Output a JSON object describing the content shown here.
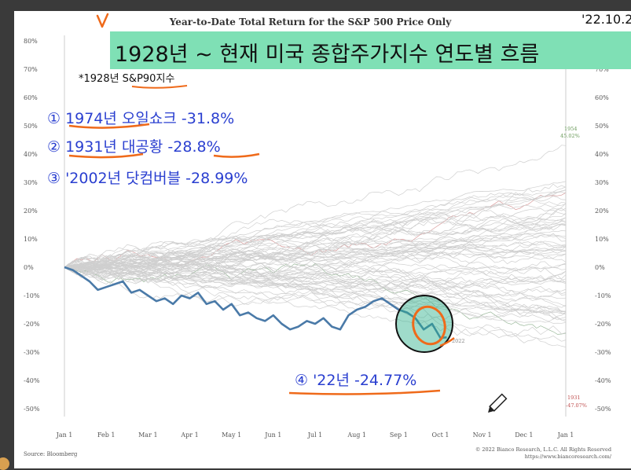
{
  "chart_data": {
    "type": "line",
    "title": "Year-to-Date Total Return for the S&P 500 Price Only",
    "x_tick_labels": [
      "Jan 1",
      "Feb 1",
      "Mar 1",
      "Apr 1",
      "May 1",
      "Jun 1",
      "Jul 1",
      "Aug 1",
      "Sep 1",
      "Oct 1",
      "Nov 1",
      "Dec 1",
      "Jan 1"
    ],
    "y_tick_labels": [
      "80%",
      "70%",
      "60%",
      "50%",
      "40%",
      "30%",
      "20%",
      "10%",
      "0%",
      "-10%",
      "-20%",
      "-30%",
      "-40%",
      "-50%"
    ],
    "right_y_tick_labels": [
      "70%",
      "60%",
      "50%",
      "40%",
      "30%",
      "20%",
      "10%",
      "0%",
      "-10%",
      "-20%",
      "-30%",
      "-40%",
      "-50%"
    ],
    "ylim": [
      -55,
      82
    ],
    "xlim": [
      0,
      12
    ],
    "grid": false,
    "highlight_series": {
      "color": "#4a7aa8",
      "x": [
        0,
        0.2,
        0.4,
        0.6,
        0.8,
        1.0,
        1.2,
        1.4,
        1.6,
        1.8,
        2.0,
        2.2,
        2.4,
        2.6,
        2.8,
        3.0,
        3.2,
        3.4,
        3.6,
        3.8,
        4.0,
        4.2,
        4.4,
        4.6,
        4.8,
        5.0,
        5.2,
        5.4,
        5.6,
        5.8,
        6.0,
        6.2,
        6.4,
        6.6,
        6.8,
        7.0,
        7.2,
        7.4,
        7.6,
        7.8,
        8.0,
        8.2,
        8.4,
        8.6,
        8.8,
        9.0,
        9.15
      ],
      "values": [
        0,
        -1,
        -3,
        -5,
        -8,
        -7,
        -6,
        -5,
        -9,
        -8,
        -10,
        -12,
        -11,
        -13,
        -10,
        -11,
        -9,
        -13,
        -12,
        -15,
        -13,
        -17,
        -16,
        -18,
        -19,
        -17,
        -20,
        -22,
        -21,
        -19,
        -20,
        -18,
        -21,
        -22,
        -17,
        -15,
        -14,
        -12,
        -11,
        -13,
        -15,
        -16,
        -18,
        -22,
        -20,
        -25,
        -24.77
      ]
    },
    "annotations": {
      "year_1954_label": "1954",
      "year_1954_value": "45.02%",
      "year_1931_label": "1931",
      "year_1931_value": "-47.07%",
      "year_2022_label": "2022"
    },
    "source_label": "Source: Bloomberg",
    "copyright": "© 2022 Bianco Research, L.L.C. All Rights Reserved",
    "url": "https://www.biancoresearch.com/"
  },
  "overlay": {
    "banner_date": "'22.10.2",
    "banner_title": "1928년 ~ 현재 미국 종합주가지수 연도별 흐름",
    "sp90_note": "*1928년 S&P90지수",
    "note1": "① 1974년 오일쇼크 -31.8%",
    "note2": "② 1931년 대공황 -28.8%",
    "note3": "③ '2002년 닷컴버블 -28.99%",
    "note4": "④ '22년 -24.77%"
  }
}
